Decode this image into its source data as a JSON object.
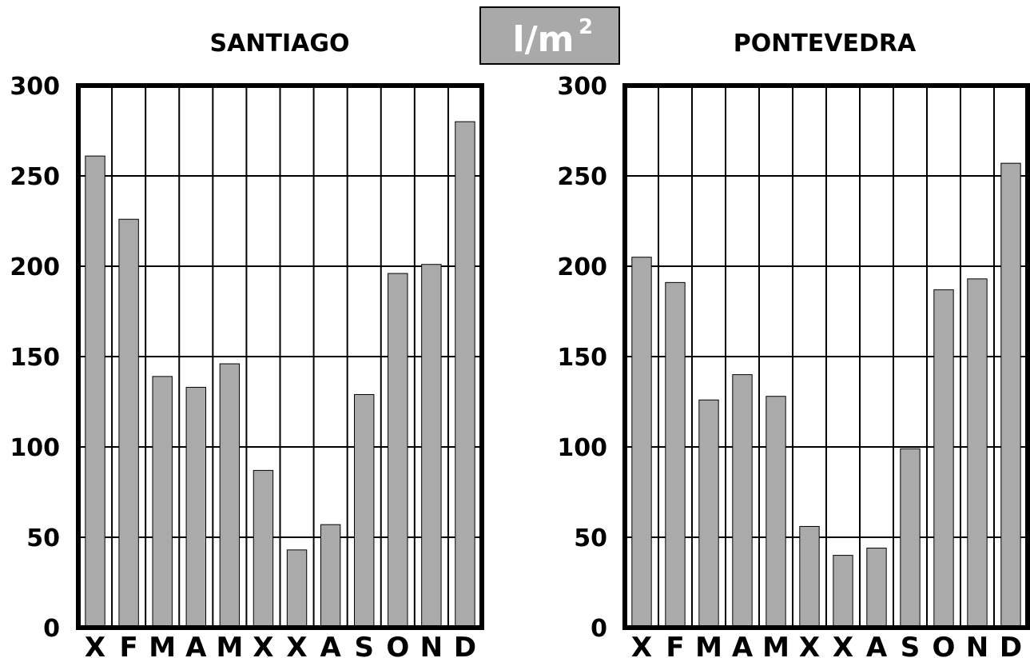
{
  "unit_label": {
    "text": "l/m",
    "sup": "2"
  },
  "colors": {
    "bar": "#aaaaab",
    "frame": "#000000",
    "unit_box": "#a9a9a9"
  },
  "chart_data": [
    {
      "type": "bar",
      "title": "SANTIAGO",
      "categories": [
        "X",
        "F",
        "M",
        "A",
        "M",
        "X",
        "X",
        "A",
        "S",
        "O",
        "N",
        "D"
      ],
      "values": [
        261,
        226,
        139,
        133,
        146,
        87,
        43,
        57,
        129,
        196,
        201,
        280
      ],
      "ylim": [
        0,
        300
      ],
      "yticks": [
        "0",
        "50",
        "100",
        "150",
        "200",
        "250",
        "300"
      ],
      "grid": true
    },
    {
      "type": "bar",
      "title": "PONTEVEDRA",
      "categories": [
        "X",
        "F",
        "M",
        "A",
        "M",
        "X",
        "X",
        "A",
        "S",
        "O",
        "N",
        "D"
      ],
      "values": [
        205,
        191,
        126,
        140,
        128,
        56,
        40,
        44,
        99,
        187,
        193,
        257
      ],
      "ylim": [
        0,
        300
      ],
      "yticks": [
        "0",
        "50",
        "100",
        "150",
        "200",
        "250",
        "300"
      ],
      "grid": true
    }
  ]
}
